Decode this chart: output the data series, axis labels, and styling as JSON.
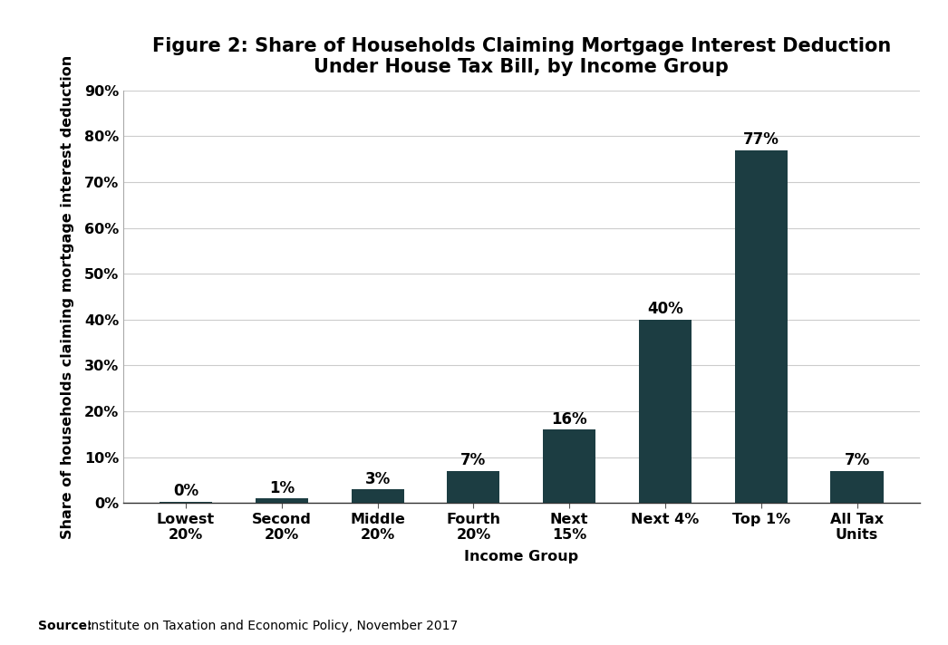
{
  "title_line1": "Figure 2: Share of Households Claiming Mortgage Interest Deduction",
  "title_line2": "Under House Tax Bill, by Income Group",
  "categories": [
    "Lowest\n20%",
    "Second\n20%",
    "Middle\n20%",
    "Fourth\n20%",
    "Next\n15%",
    "Next 4%",
    "Top 1%",
    "All Tax\nUnits"
  ],
  "values": [
    0.003,
    0.01,
    0.03,
    0.07,
    0.16,
    0.4,
    0.77,
    0.07
  ],
  "labels": [
    "0%",
    "1%",
    "3%",
    "7%",
    "16%",
    "40%",
    "77%",
    "7%"
  ],
  "bar_color": "#1c3d42",
  "ylabel": "Share of households claiming mortgage interest deduction",
  "xlabel": "Income Group",
  "ylim": [
    0,
    0.9
  ],
  "yticks": [
    0,
    0.1,
    0.2,
    0.3,
    0.4,
    0.5,
    0.6,
    0.7,
    0.8,
    0.9
  ],
  "ytick_labels": [
    "0%",
    "10%",
    "20%",
    "30%",
    "40%",
    "50%",
    "60%",
    "70%",
    "80%",
    "90%"
  ],
  "source_bold": "Source:",
  "source_rest": " Institute on Taxation and Economic Policy, November 2017",
  "background_color": "#ffffff",
  "title_fontsize": 15,
  "label_fontsize": 12,
  "tick_fontsize": 11.5,
  "axis_label_fontsize": 11.5,
  "source_fontsize": 10
}
